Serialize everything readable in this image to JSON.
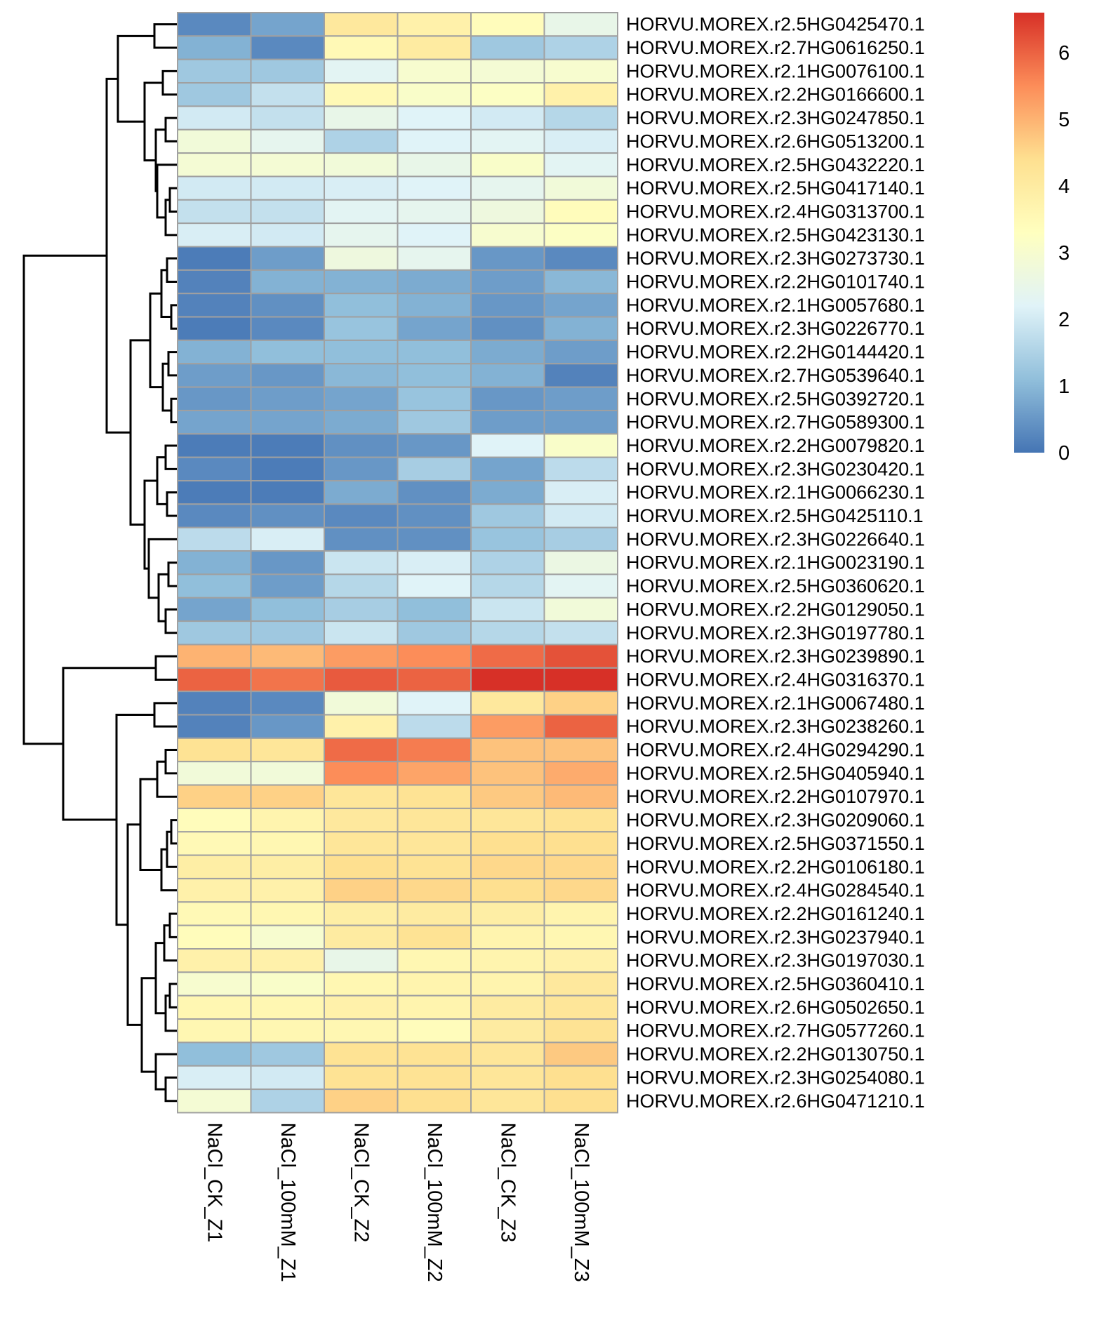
{
  "chart_data": {
    "type": "heatmap",
    "title": "",
    "columns": [
      "NaCl_CK_Z1",
      "NaCl_100mM_Z1",
      "NaCl_CK_Z2",
      "NaCl_100mM_Z2",
      "NaCl_CK_Z3",
      "NaCl_100mM_Z3"
    ],
    "rows": [
      {
        "gene": "HORVU.MOREX.r2.5HG0425470.1",
        "values": [
          0.3,
          0.7,
          4.1,
          3.8,
          3.4,
          2.5
        ]
      },
      {
        "gene": "HORVU.MOREX.r2.7HG0616250.1",
        "values": [
          0.9,
          0.3,
          3.5,
          4.0,
          1.3,
          1.5
        ]
      },
      {
        "gene": "HORVU.MOREX.r2.1HG0076100.1",
        "values": [
          1.3,
          1.3,
          2.3,
          3.0,
          2.9,
          3.0
        ]
      },
      {
        "gene": "HORVU.MOREX.r2.2HG0166600.1",
        "values": [
          1.3,
          1.8,
          3.5,
          3.1,
          3.2,
          3.8
        ]
      },
      {
        "gene": "HORVU.MOREX.r2.3HG0247850.1",
        "values": [
          2.0,
          1.8,
          2.5,
          2.2,
          2.0,
          1.6
        ]
      },
      {
        "gene": "HORVU.MOREX.r2.6HG0513200.1",
        "values": [
          2.8,
          2.4,
          1.5,
          2.2,
          2.3,
          2.1
        ]
      },
      {
        "gene": "HORVU.MOREX.r2.5HG0432220.1",
        "values": [
          2.9,
          2.9,
          2.8,
          2.5,
          3.1,
          2.3
        ]
      },
      {
        "gene": "HORVU.MOREX.r2.5HG0417140.1",
        "values": [
          2.0,
          2.0,
          2.1,
          2.2,
          2.4,
          2.8
        ]
      },
      {
        "gene": "HORVU.MOREX.r2.4HG0313700.1",
        "values": [
          1.8,
          1.8,
          2.3,
          2.4,
          2.7,
          3.4
        ]
      },
      {
        "gene": "HORVU.MOREX.r2.5HG0423130.1",
        "values": [
          2.1,
          2.0,
          2.4,
          2.2,
          3.0,
          3.2
        ]
      },
      {
        "gene": "HORVU.MOREX.r2.3HG0273730.1",
        "values": [
          0.1,
          0.6,
          2.7,
          2.4,
          0.5,
          0.3
        ]
      },
      {
        "gene": "HORVU.MOREX.r2.2HG0101740.1",
        "values": [
          0.2,
          0.9,
          0.9,
          0.8,
          0.6,
          1.0
        ]
      },
      {
        "gene": "HORVU.MOREX.r2.1HG0057680.1",
        "values": [
          0.2,
          0.4,
          1.1,
          0.9,
          0.5,
          0.7
        ]
      },
      {
        "gene": "HORVU.MOREX.r2.3HG0226770.1",
        "values": [
          0.1,
          0.3,
          1.2,
          0.7,
          0.4,
          0.9
        ]
      },
      {
        "gene": "HORVU.MOREX.r2.2HG0144420.1",
        "values": [
          0.9,
          1.1,
          1.1,
          1.1,
          0.8,
          0.6
        ]
      },
      {
        "gene": "HORVU.MOREX.r2.7HG0539640.1",
        "values": [
          0.6,
          0.5,
          1.0,
          1.1,
          0.9,
          0.2
        ]
      },
      {
        "gene": "HORVU.MOREX.r2.5HG0392720.1",
        "values": [
          0.5,
          0.6,
          0.7,
          1.2,
          0.5,
          0.6
        ]
      },
      {
        "gene": "HORVU.MOREX.r2.7HG0589300.1",
        "values": [
          0.7,
          0.7,
          0.8,
          1.3,
          0.6,
          0.6
        ]
      },
      {
        "gene": "HORVU.MOREX.r2.2HG0079820.1",
        "values": [
          0.1,
          0.1,
          0.4,
          0.5,
          2.2,
          3.1
        ]
      },
      {
        "gene": "HORVU.MOREX.r2.3HG0230420.1",
        "values": [
          0.3,
          0.1,
          0.5,
          1.4,
          0.7,
          1.7
        ]
      },
      {
        "gene": "HORVU.MOREX.r2.1HG0066230.1",
        "values": [
          0.1,
          0.1,
          0.8,
          0.4,
          0.8,
          2.1
        ]
      },
      {
        "gene": "HORVU.MOREX.r2.5HG0425110.1",
        "values": [
          0.3,
          0.4,
          0.3,
          0.4,
          1.3,
          2.0
        ]
      },
      {
        "gene": "HORVU.MOREX.r2.3HG0226640.1",
        "values": [
          1.7,
          2.1,
          0.4,
          0.4,
          1.2,
          1.4
        ]
      },
      {
        "gene": "HORVU.MOREX.r2.1HG0023190.1",
        "values": [
          0.9,
          0.5,
          1.9,
          2.1,
          1.5,
          2.6
        ]
      },
      {
        "gene": "HORVU.MOREX.r2.5HG0360620.1",
        "values": [
          1.1,
          0.6,
          1.6,
          2.2,
          1.6,
          2.3
        ]
      },
      {
        "gene": "HORVU.MOREX.r2.2HG0129050.1",
        "values": [
          0.7,
          1.1,
          1.4,
          1.1,
          1.9,
          2.8
        ]
      },
      {
        "gene": "HORVU.MOREX.r2.3HG0197780.1",
        "values": [
          1.3,
          1.3,
          1.9,
          1.3,
          1.6,
          1.8
        ]
      },
      {
        "gene": "HORVU.MOREX.r2.3HG0239890.1",
        "values": [
          5.0,
          4.9,
          5.3,
          5.5,
          5.9,
          6.2
        ]
      },
      {
        "gene": "HORVU.MOREX.r2.4HG0316370.1",
        "values": [
          6.0,
          5.8,
          6.1,
          6.0,
          6.6,
          6.6
        ]
      },
      {
        "gene": "HORVU.MOREX.r2.1HG0067480.1",
        "values": [
          0.2,
          0.3,
          2.8,
          2.2,
          4.1,
          4.6
        ]
      },
      {
        "gene": "HORVU.MOREX.r2.3HG0238260.1",
        "values": [
          0.2,
          0.5,
          3.8,
          1.7,
          5.3,
          6.0
        ]
      },
      {
        "gene": "HORVU.MOREX.r2.4HG0294290.1",
        "values": [
          4.3,
          4.2,
          5.9,
          5.7,
          4.8,
          4.8
        ]
      },
      {
        "gene": "HORVU.MOREX.r2.5HG0405940.1",
        "values": [
          2.8,
          2.8,
          5.5,
          5.2,
          4.8,
          5.1
        ]
      },
      {
        "gene": "HORVU.MOREX.r2.2HG0107970.1",
        "values": [
          4.6,
          4.6,
          4.2,
          4.3,
          4.7,
          4.9
        ]
      },
      {
        "gene": "HORVU.MOREX.r2.3HG0209060.1",
        "values": [
          3.4,
          3.7,
          4.1,
          4.2,
          4.2,
          4.3
        ]
      },
      {
        "gene": "HORVU.MOREX.r2.5HG0371550.1",
        "values": [
          3.5,
          3.6,
          4.2,
          4.2,
          4.4,
          4.4
        ]
      },
      {
        "gene": "HORVU.MOREX.r2.2HG0106180.1",
        "values": [
          3.9,
          3.9,
          4.4,
          4.3,
          4.5,
          4.5
        ]
      },
      {
        "gene": "HORVU.MOREX.r2.4HG0284540.1",
        "values": [
          3.8,
          3.8,
          4.6,
          4.5,
          4.4,
          4.5
        ]
      },
      {
        "gene": "HORVU.MOREX.r2.2HG0161240.1",
        "values": [
          3.5,
          3.6,
          3.9,
          4.0,
          3.9,
          3.7
        ]
      },
      {
        "gene": "HORVU.MOREX.r2.3HG0237940.1",
        "values": [
          3.4,
          3.0,
          4.0,
          4.3,
          3.7,
          3.6
        ]
      },
      {
        "gene": "HORVU.MOREX.r2.3HG0197030.1",
        "values": [
          3.8,
          3.8,
          2.5,
          3.6,
          3.7,
          3.8
        ]
      },
      {
        "gene": "HORVU.MOREX.r2.5HG0360410.1",
        "values": [
          3.0,
          3.1,
          3.6,
          3.7,
          3.7,
          4.1
        ]
      },
      {
        "gene": "HORVU.MOREX.r2.6HG0502650.1",
        "values": [
          3.6,
          3.6,
          3.8,
          3.7,
          4.0,
          4.2
        ]
      },
      {
        "gene": "HORVU.MOREX.r2.7HG0577260.1",
        "values": [
          3.6,
          3.6,
          3.6,
          3.4,
          4.0,
          4.3
        ]
      },
      {
        "gene": "HORVU.MOREX.r2.2HG0130750.1",
        "values": [
          1.1,
          1.3,
          4.3,
          4.3,
          4.2,
          4.7
        ]
      },
      {
        "gene": "HORVU.MOREX.r2.3HG0254080.1",
        "values": [
          2.1,
          2.0,
          4.3,
          4.3,
          4.2,
          4.4
        ]
      },
      {
        "gene": "HORVU.MOREX.r2.6HG0471210.1",
        "values": [
          2.9,
          1.5,
          4.6,
          4.4,
          4.2,
          4.4
        ]
      }
    ],
    "color_scale": {
      "range": [
        0,
        6.6
      ],
      "ticks": [
        0,
        1,
        2,
        3,
        4,
        5,
        6
      ],
      "palette": [
        "#4575b4",
        "#91bfdb",
        "#e0f3f8",
        "#ffffbf",
        "#fee090",
        "#fc8d59",
        "#d73027"
      ]
    },
    "cell_border_color": "#a0a0a0",
    "legend_position": "top-right",
    "row_dendrogram": true
  }
}
